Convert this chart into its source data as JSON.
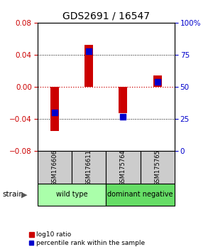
{
  "title": "GDS2691 / 16547",
  "samples": [
    "GSM176606",
    "GSM176611",
    "GSM175764",
    "GSM175765"
  ],
  "log10_ratio": [
    -0.055,
    0.052,
    -0.033,
    0.014
  ],
  "percentile_rank": [
    30,
    78,
    27,
    54
  ],
  "ylim_left": [
    -0.08,
    0.08
  ],
  "ylim_right": [
    0,
    100
  ],
  "yticks_left": [
    -0.08,
    -0.04,
    0,
    0.04,
    0.08
  ],
  "yticks_right": [
    0,
    25,
    50,
    75,
    100
  ],
  "bar_color": "#cc0000",
  "dot_color": "#0000cc",
  "zero_line_color": "#cc0000",
  "groups": [
    {
      "label": "wild type",
      "samples": [
        0,
        1
      ],
      "color": "#aaffaa"
    },
    {
      "label": "dominant negative",
      "samples": [
        2,
        3
      ],
      "color": "#66dd66"
    }
  ],
  "strain_label": "strain",
  "legend_ratio_label": "log10 ratio",
  "legend_pct_label": "percentile rank within the sample",
  "bar_width": 0.25,
  "dot_size": 35,
  "sample_box_color": "#cccccc",
  "title_fontsize": 10,
  "tick_fontsize": 7.5,
  "sample_fontsize": 6,
  "group_fontsize": 7,
  "legend_fontsize": 6.5
}
